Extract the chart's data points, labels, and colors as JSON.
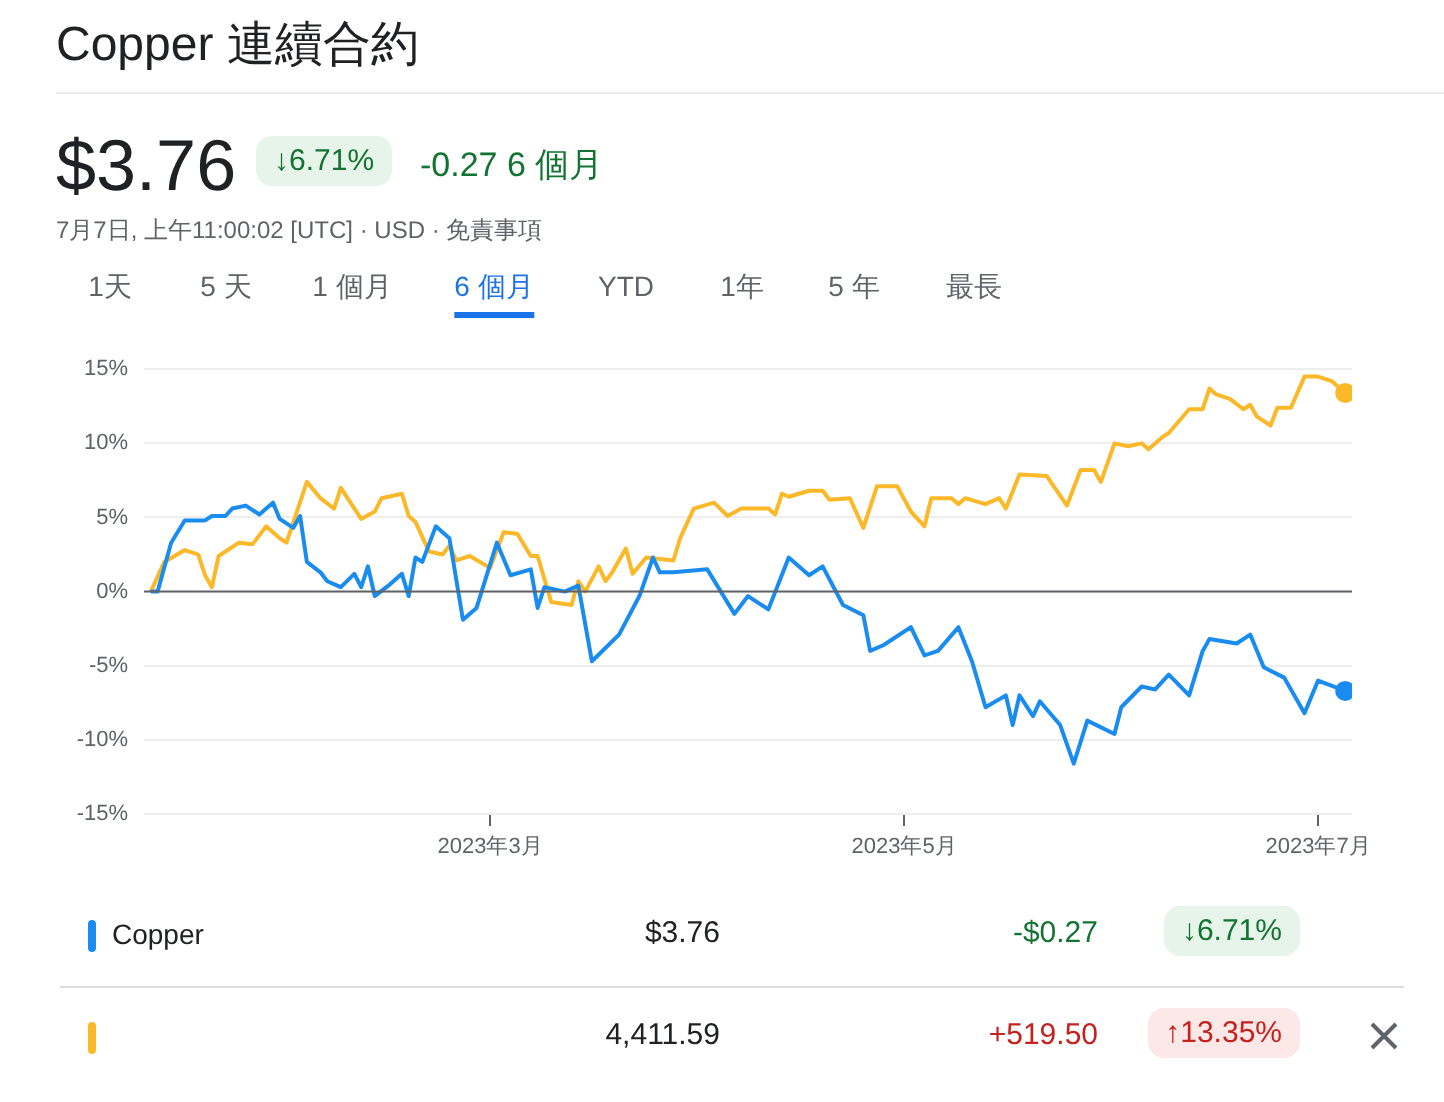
{
  "chart_data": {
    "type": "line",
    "title": "Copper 連續合約",
    "annotations": [
      "$3.76",
      "↓6.71%",
      "-0.27 6 個月",
      "7月7日, 上午11:00:02 [UTC] · USD · 免責事項",
      "1天",
      "5 天",
      "1 個月",
      "6 個月",
      "YTD",
      "1年",
      "5 年",
      "最長",
      "$3.76",
      "-$0.27",
      "↓6.71%",
      "4,411.59",
      "+519.50",
      "↑13.35%"
    ],
    "xlim": [
      "2023-01-09",
      "2023-07-06"
    ],
    "xticks": [
      {
        "value": "2023-03-01",
        "label": "2023年3月"
      },
      {
        "value": "2023-05-01",
        "label": "2023年5月"
      },
      {
        "value": "2023-07-01",
        "label": "2023年7月"
      }
    ],
    "ylim": [
      -15,
      15
    ],
    "yticks": [
      {
        "value": -15,
        "label": "-15%"
      },
      {
        "value": -10,
        "label": "-10%"
      },
      {
        "value": -5,
        "label": "-5%"
      },
      {
        "value": 0,
        "label": "0%"
      },
      {
        "value": 5,
        "label": "5%"
      },
      {
        "value": 10,
        "label": "10%"
      },
      {
        "value": 15,
        "label": "15%"
      }
    ],
    "grid": "y",
    "legend": "bottom",
    "ref_lines": [
      {
        "axis": "y",
        "value": 0,
        "color": "#5f6368"
      }
    ],
    "series": [
      {
        "name": "Copper",
        "color": "#1a8cf0",
        "x": [
          "2023-01-10",
          "2023-01-11",
          "2023-01-13",
          "2023-01-15",
          "2023-01-18",
          "2023-01-19",
          "2023-01-21",
          "2023-01-22",
          "2023-01-24",
          "2023-01-26",
          "2023-01-28",
          "2023-01-29",
          "2023-01-31",
          "2023-02-01",
          "2023-02-02",
          "2023-02-04",
          "2023-02-05",
          "2023-02-07",
          "2023-02-09",
          "2023-02-10",
          "2023-02-11",
          "2023-02-12",
          "2023-02-14",
          "2023-02-16",
          "2023-02-17",
          "2023-02-18",
          "2023-02-19",
          "2023-02-21",
          "2023-02-23",
          "2023-02-25",
          "2023-02-27",
          "2023-03-02",
          "2023-03-04",
          "2023-03-07",
          "2023-03-08",
          "2023-03-09",
          "2023-03-12",
          "2023-03-14",
          "2023-03-16",
          "2023-03-20",
          "2023-03-23",
          "2023-03-25",
          "2023-03-26",
          "2023-03-28",
          "2023-04-02",
          "2023-04-06",
          "2023-04-08",
          "2023-04-11",
          "2023-04-14",
          "2023-04-17",
          "2023-04-19",
          "2023-04-22",
          "2023-04-25",
          "2023-04-26",
          "2023-04-28",
          "2023-05-02",
          "2023-05-04",
          "2023-05-06",
          "2023-05-09",
          "2023-05-11",
          "2023-05-13",
          "2023-05-16",
          "2023-05-17",
          "2023-05-18",
          "2023-05-20",
          "2023-05-21",
          "2023-05-24",
          "2023-05-26",
          "2023-05-28",
          "2023-06-01",
          "2023-06-02",
          "2023-06-05",
          "2023-06-07",
          "2023-06-09",
          "2023-06-12",
          "2023-06-14",
          "2023-06-15",
          "2023-06-19",
          "2023-06-21",
          "2023-06-23",
          "2023-06-26",
          "2023-06-29",
          "2023-07-01",
          "2023-07-05"
        ],
        "values": [
          0,
          0,
          3.3,
          4.8,
          4.8,
          5.1,
          5.1,
          5.6,
          5.8,
          5.2,
          6.0,
          4.9,
          4.3,
          5.1,
          2.0,
          1.3,
          0.7,
          0.3,
          1.2,
          0.3,
          1.7,
          -0.3,
          0.4,
          1.2,
          -0.3,
          2.3,
          2.0,
          4.4,
          3.6,
          -1.9,
          -1.1,
          3.3,
          1.1,
          1.5,
          -1.1,
          0.3,
          0,
          0.4,
          -4.7,
          -2.9,
          -0.3,
          2.3,
          1.3,
          1.3,
          1.5,
          -1.5,
          -0.3,
          -1.2,
          2.3,
          1.1,
          1.7,
          -0.9,
          -1.6,
          -4.0,
          -3.6,
          -2.4,
          -4.3,
          -4.0,
          -2.4,
          -4.7,
          -7.8,
          -7.0,
          -9.0,
          -7.0,
          -8.4,
          -7.4,
          -9.0,
          -11.6,
          -8.7,
          -9.6,
          -7.8,
          -6.4,
          -6.6,
          -5.6,
          -7.0,
          -4.0,
          -3.2,
          -3.5,
          -2.9,
          -5.1,
          -5.8,
          -8.2,
          -6.0,
          -6.7
        ]
      },
      {
        "color": "#fbb829",
        "x": [
          "2023-01-10",
          "2023-01-12",
          "2023-01-15",
          "2023-01-17",
          "2023-01-18",
          "2023-01-19",
          "2023-01-20",
          "2023-01-23",
          "2023-01-25",
          "2023-01-27",
          "2023-01-29",
          "2023-01-30",
          "2023-02-02",
          "2023-02-04",
          "2023-02-06",
          "2023-02-07",
          "2023-02-10",
          "2023-02-12",
          "2023-02-13",
          "2023-02-14",
          "2023-02-16",
          "2023-02-17",
          "2023-02-18",
          "2023-02-20",
          "2023-02-22",
          "2023-02-23",
          "2023-02-24",
          "2023-02-26",
          "2023-03-01",
          "2023-03-03",
          "2023-03-05",
          "2023-03-07",
          "2023-03-08",
          "2023-03-10",
          "2023-03-13",
          "2023-03-14",
          "2023-03-15",
          "2023-03-17",
          "2023-03-18",
          "2023-03-19",
          "2023-03-21",
          "2023-03-22",
          "2023-03-24",
          "2023-03-28",
          "2023-03-29",
          "2023-03-31",
          "2023-04-03",
          "2023-04-05",
          "2023-04-07",
          "2023-04-11",
          "2023-04-12",
          "2023-04-13",
          "2023-04-14",
          "2023-04-17",
          "2023-04-19",
          "2023-04-20",
          "2023-04-23",
          "2023-04-25",
          "2023-04-27",
          "2023-04-30",
          "2023-05-02",
          "2023-05-04",
          "2023-05-05",
          "2023-05-08",
          "2023-05-09",
          "2023-05-10",
          "2023-05-13",
          "2023-05-15",
          "2023-05-16",
          "2023-05-18",
          "2023-05-22",
          "2023-05-25",
          "2023-05-27",
          "2023-05-29",
          "2023-05-30",
          "2023-06-01",
          "2023-06-03",
          "2023-06-05",
          "2023-06-06",
          "2023-06-08",
          "2023-06-09",
          "2023-06-12",
          "2023-06-14",
          "2023-06-15",
          "2023-06-16",
          "2023-06-18",
          "2023-06-20",
          "2023-06-21",
          "2023-06-22",
          "2023-06-24",
          "2023-06-25",
          "2023-06-27",
          "2023-06-29",
          "2023-07-01",
          "2023-07-03",
          "2023-07-05"
        ],
        "values": [
          0,
          2.0,
          2.8,
          2.5,
          1.1,
          0.3,
          2.4,
          3.3,
          3.2,
          4.4,
          3.6,
          3.3,
          7.4,
          6.3,
          5.6,
          7.0,
          4.9,
          5.4,
          6.3,
          6.4,
          6.6,
          5.1,
          4.7,
          2.7,
          2.5,
          3.1,
          2.1,
          2.4,
          1.6,
          4.0,
          3.9,
          2.4,
          2.4,
          -0.7,
          -0.9,
          0.7,
          0,
          1.7,
          0.7,
          1.3,
          2.9,
          1.2,
          2.3,
          2.1,
          3.6,
          5.6,
          6.0,
          5.1,
          5.6,
          5.6,
          5.2,
          6.6,
          6.4,
          6.8,
          6.8,
          6.2,
          6.3,
          4.3,
          7.1,
          7.1,
          5.4,
          4.4,
          6.3,
          6.3,
          5.9,
          6.3,
          5.9,
          6.3,
          5.6,
          7.9,
          7.8,
          5.8,
          8.2,
          8.2,
          7.4,
          10.0,
          9.8,
          10.0,
          9.6,
          10.4,
          10.7,
          12.3,
          12.3,
          13.7,
          13.3,
          13.0,
          12.3,
          12.6,
          11.8,
          11.2,
          12.4,
          12.4,
          14.5,
          14.5,
          14.2,
          13.4
        ]
      }
    ]
  }
}
